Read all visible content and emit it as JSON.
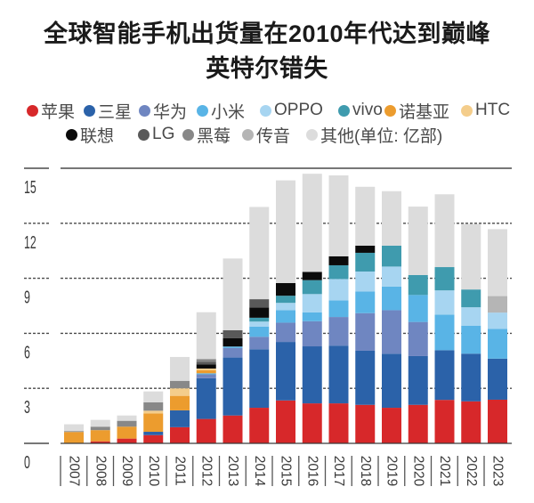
{
  "chart_data": {
    "type": "bar",
    "stacked": true,
    "title_lines": [
      "全球智能手机出货量在2010年代达到巅峰",
      "英特尔错失"
    ],
    "xlabel": "",
    "ylabel": "",
    "unit": "亿部",
    "ylim": [
      0,
      15
    ],
    "yticks": [
      0,
      3,
      6,
      9,
      12,
      15
    ],
    "grid": true,
    "legend_position": "top",
    "categories": [
      "2007",
      "2008",
      "2009",
      "2010",
      "2011",
      "2012",
      "2013",
      "2014",
      "2015",
      "2016",
      "2017",
      "2018",
      "2019",
      "2020",
      "2021",
      "2022",
      "2023"
    ],
    "series": [
      {
        "key": "apple",
        "name": "苹果",
        "color": "#d7282a",
        "values": [
          0,
          0.11,
          0.26,
          0.45,
          0.88,
          1.33,
          1.52,
          1.94,
          2.34,
          2.18,
          2.18,
          2.1,
          1.94,
          2.1,
          2.37,
          2.29,
          2.38
        ]
      },
      {
        "key": "samsung",
        "name": "三星",
        "color": "#2b62a9",
        "values": [
          0,
          0,
          0,
          0.18,
          0.92,
          2.22,
          3.16,
          3.19,
          3.19,
          3.11,
          3.15,
          2.95,
          2.95,
          2.66,
          2.71,
          2.6,
          2.24
        ]
      },
      {
        "key": "huawei",
        "name": "华为",
        "color": "#6f86c1",
        "values": [
          0,
          0,
          0,
          0,
          0,
          0.21,
          0.52,
          0.68,
          1.05,
          1.37,
          1.56,
          2.05,
          2.37,
          1.86,
          0,
          0,
          0
        ]
      },
      {
        "key": "xiaomi",
        "name": "小米",
        "color": "#59b4e6",
        "values": [
          0,
          0,
          0,
          0,
          0,
          0.06,
          0.08,
          0.56,
          0.68,
          0.48,
          0.9,
          1.18,
          1.29,
          1.47,
          1.94,
          1.53,
          1.62
        ]
      },
      {
        "key": "oppo",
        "name": "OPPO",
        "color": "#a7d5f1",
        "values": [
          0,
          0,
          0,
          0,
          0,
          0,
          0,
          0.27,
          0.4,
          1.0,
          1.17,
          1.09,
          1.09,
          0,
          1.32,
          1.0,
          0.89
        ]
      },
      {
        "key": "vivo",
        "name": "vivo",
        "color": "#3f9bae",
        "values": [
          0,
          0,
          0,
          0,
          0,
          0,
          0,
          0.21,
          0.39,
          0.76,
          0.75,
          1.02,
          1.14,
          1.09,
          1.27,
          0.97,
          0
        ]
      },
      {
        "key": "nokia",
        "name": "诺基亚",
        "color": "#ec9c2e",
        "values": [
          0.62,
          0.61,
          0.65,
          1.0,
          0.79,
          0.16,
          0,
          0,
          0,
          0,
          0,
          0,
          0,
          0,
          0,
          0,
          0
        ]
      },
      {
        "key": "htc",
        "name": "HTC",
        "color": "#f4cd8b",
        "values": [
          0,
          0,
          0,
          0.15,
          0.41,
          0.1,
          0,
          0,
          0,
          0,
          0,
          0,
          0,
          0,
          0,
          0,
          0
        ]
      },
      {
        "key": "lenovo",
        "name": "联想",
        "color": "#0b0b0b",
        "values": [
          0,
          0,
          0,
          0,
          0,
          0.23,
          0.45,
          0.56,
          0.69,
          0.45,
          0.49,
          0.39,
          0,
          0,
          0,
          0,
          0
        ]
      },
      {
        "key": "lg",
        "name": "LG",
        "color": "#595959",
        "values": [
          0,
          0,
          0,
          0,
          0,
          0.13,
          0.44,
          0.45,
          0,
          0,
          0,
          0,
          0,
          0,
          0,
          0,
          0
        ]
      },
      {
        "key": "blackberry",
        "name": "黑莓",
        "color": "#888888",
        "values": [
          0.05,
          0.19,
          0.32,
          0.46,
          0.41,
          0.16,
          0,
          0,
          0,
          0,
          0,
          0,
          0,
          0,
          0,
          0,
          0
        ]
      },
      {
        "key": "transsion",
        "name": "传音",
        "color": "#b5b5b5",
        "values": [
          0,
          0,
          0,
          0,
          0,
          0,
          0,
          0,
          0,
          0,
          0,
          0,
          0,
          0,
          0,
          0,
          0.9
        ]
      },
      {
        "key": "others",
        "name": "其他(单位: 亿部)",
        "color": "#dcdcdc",
        "values": [
          0.37,
          0.37,
          0.29,
          0.59,
          1.3,
          2.55,
          3.91,
          5.03,
          5.6,
          5.35,
          4.41,
          3.21,
          2.97,
          3.73,
          3.97,
          3.57,
          3.65
        ]
      }
    ]
  }
}
